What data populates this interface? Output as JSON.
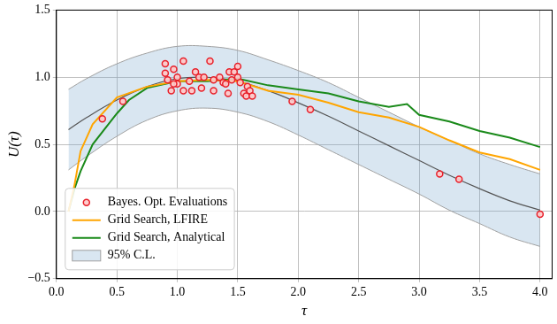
{
  "chart_data": {
    "type": "scatter",
    "xlabel": "τ",
    "ylabel": "U(τ)",
    "xlim": [
      0,
      4.1
    ],
    "ylim": [
      -0.5,
      1.5
    ],
    "xticks": [
      {
        "value": 0,
        "label": "0.0"
      },
      0.5,
      {
        "value": 1,
        "label": "1.0"
      },
      1.5,
      {
        "value": 2,
        "label": "2.0"
      },
      2.5,
      {
        "value": 3,
        "label": "3.0"
      },
      3.5,
      {
        "value": 4,
        "label": "4.0"
      }
    ],
    "yticks": [
      {
        "value": -0.5,
        "label": "−0.5"
      },
      {
        "value": 0,
        "label": "0.0"
      },
      0.5,
      {
        "value": 1,
        "label": "1.0"
      },
      1.5
    ],
    "grid": true,
    "legend": "lower left",
    "series": [
      {
        "name": "Bayes. Opt. Evaluations",
        "type": "scatter",
        "marker": "circle",
        "color": "#e8202a",
        "x": [
          0.38,
          0.55,
          0.9,
          0.9,
          0.92,
          0.95,
          0.97,
          1.0,
          1.05,
          1.05,
          1.1,
          1.12,
          1.15,
          1.18,
          1.2,
          1.22,
          1.27,
          1.3,
          1.3,
          1.35,
          1.38,
          1.4,
          1.42,
          1.43,
          1.45,
          1.47,
          1.5,
          1.5,
          1.52,
          1.55,
          1.57,
          1.58,
          1.6,
          1.62,
          1.95,
          2.1,
          3.17,
          3.33,
          4.0,
          1.0,
          0.97
        ],
        "values": [
          0.69,
          0.82,
          1.1,
          1.03,
          0.98,
          0.9,
          1.06,
          1.0,
          0.9,
          1.12,
          0.97,
          0.9,
          1.04,
          1.0,
          0.92,
          1.0,
          1.12,
          0.9,
          0.98,
          1.0,
          0.96,
          0.95,
          0.88,
          1.04,
          0.98,
          1.04,
          1.08,
          1.0,
          0.96,
          0.88,
          0.86,
          0.93,
          0.9,
          0.86,
          0.82,
          0.76,
          0.28,
          0.24,
          -0.02,
          0.95,
          0.95
        ]
      },
      {
        "name": "Grid Search, LFIRE",
        "type": "line",
        "color": "#ffa500",
        "x": [
          0.1,
          0.15,
          0.2,
          0.3,
          0.5,
          0.75,
          1.0,
          1.25,
          1.5,
          1.75,
          2.0,
          2.25,
          2.5,
          2.75,
          3.0,
          3.25,
          3.5,
          3.75,
          4.0
        ],
        "values": [
          0.0,
          0.2,
          0.45,
          0.65,
          0.85,
          0.93,
          0.97,
          0.98,
          0.97,
          0.9,
          0.87,
          0.81,
          0.74,
          0.7,
          0.63,
          0.53,
          0.44,
          0.39,
          0.31
        ]
      },
      {
        "name": "Grid Search, Analytical",
        "type": "line",
        "color": "#1a8a1a",
        "x": [
          0.1,
          0.15,
          0.2,
          0.3,
          0.5,
          0.6,
          0.75,
          1.0,
          1.25,
          1.5,
          1.75,
          2.0,
          2.25,
          2.5,
          2.75,
          2.9,
          3.0,
          3.25,
          3.5,
          3.75,
          4.0
        ],
        "values": [
          0.0,
          0.17,
          0.3,
          0.5,
          0.73,
          0.83,
          0.92,
          0.97,
          0.97,
          0.99,
          0.94,
          0.91,
          0.88,
          0.82,
          0.78,
          0.8,
          0.72,
          0.67,
          0.6,
          0.55,
          0.48
        ]
      }
    ],
    "confidence_band": {
      "name": "95% C.L.",
      "color": "rgba(120,165,205,0.28)",
      "x": [
        0.1,
        0.25,
        0.5,
        0.75,
        1.0,
        1.25,
        1.5,
        1.75,
        2.0,
        2.25,
        2.5,
        2.75,
        3.0,
        3.25,
        3.5,
        3.75,
        4.0
      ],
      "lower": [
        0.31,
        0.41,
        0.56,
        0.68,
        0.75,
        0.77,
        0.74,
        0.67,
        0.57,
        0.46,
        0.35,
        0.24,
        0.13,
        0.01,
        -0.09,
        -0.19,
        -0.26
      ],
      "upper": [
        0.91,
        0.99,
        1.1,
        1.18,
        1.23,
        1.23,
        1.2,
        1.13,
        1.05,
        0.96,
        0.85,
        0.74,
        0.63,
        0.53,
        0.43,
        0.35,
        0.28
      ],
      "mean": [
        0.61,
        0.7,
        0.83,
        0.93,
        0.99,
        1.0,
        0.97,
        0.9,
        0.81,
        0.71,
        0.6,
        0.49,
        0.38,
        0.27,
        0.17,
        0.08,
        0.01
      ]
    }
  }
}
